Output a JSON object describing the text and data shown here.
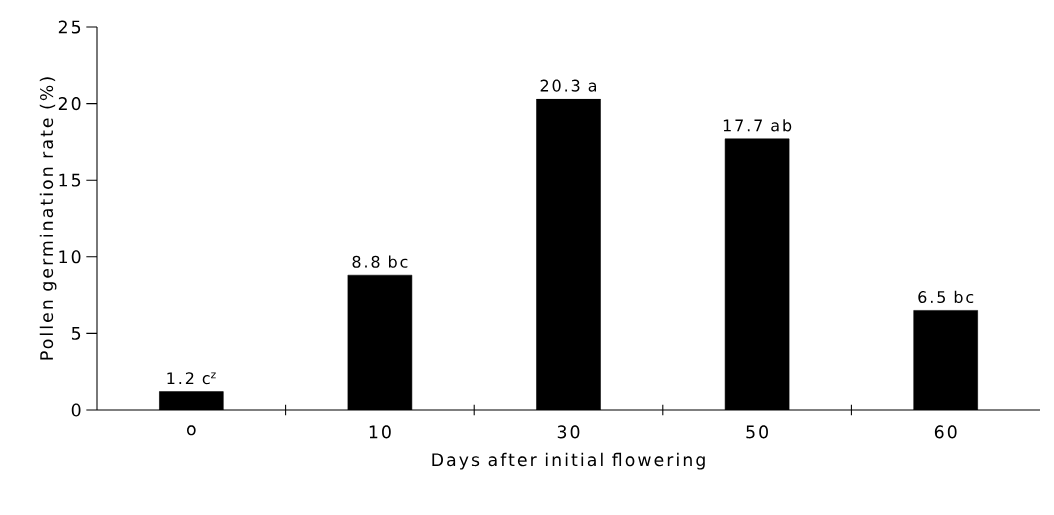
{
  "chart_data": {
    "type": "bar",
    "xlabel": "Days after initial flowering",
    "ylabel": "Pollen germination rate (%)",
    "categories": [
      "o",
      "10",
      "30",
      "50",
      "60"
    ],
    "values": [
      1.2,
      8.8,
      20.3,
      17.7,
      6.5
    ],
    "color": "#000000",
    "value_labels": [
      "1.2 c$^{z}$",
      "8.8 bc",
      "20.3 a",
      "17.7 ab",
      "6.5 bc"
    ],
    "ylim": [
      0,
      25
    ],
    "yticks": [
      0,
      5,
      10,
      15,
      20,
      25
    ]
  }
}
